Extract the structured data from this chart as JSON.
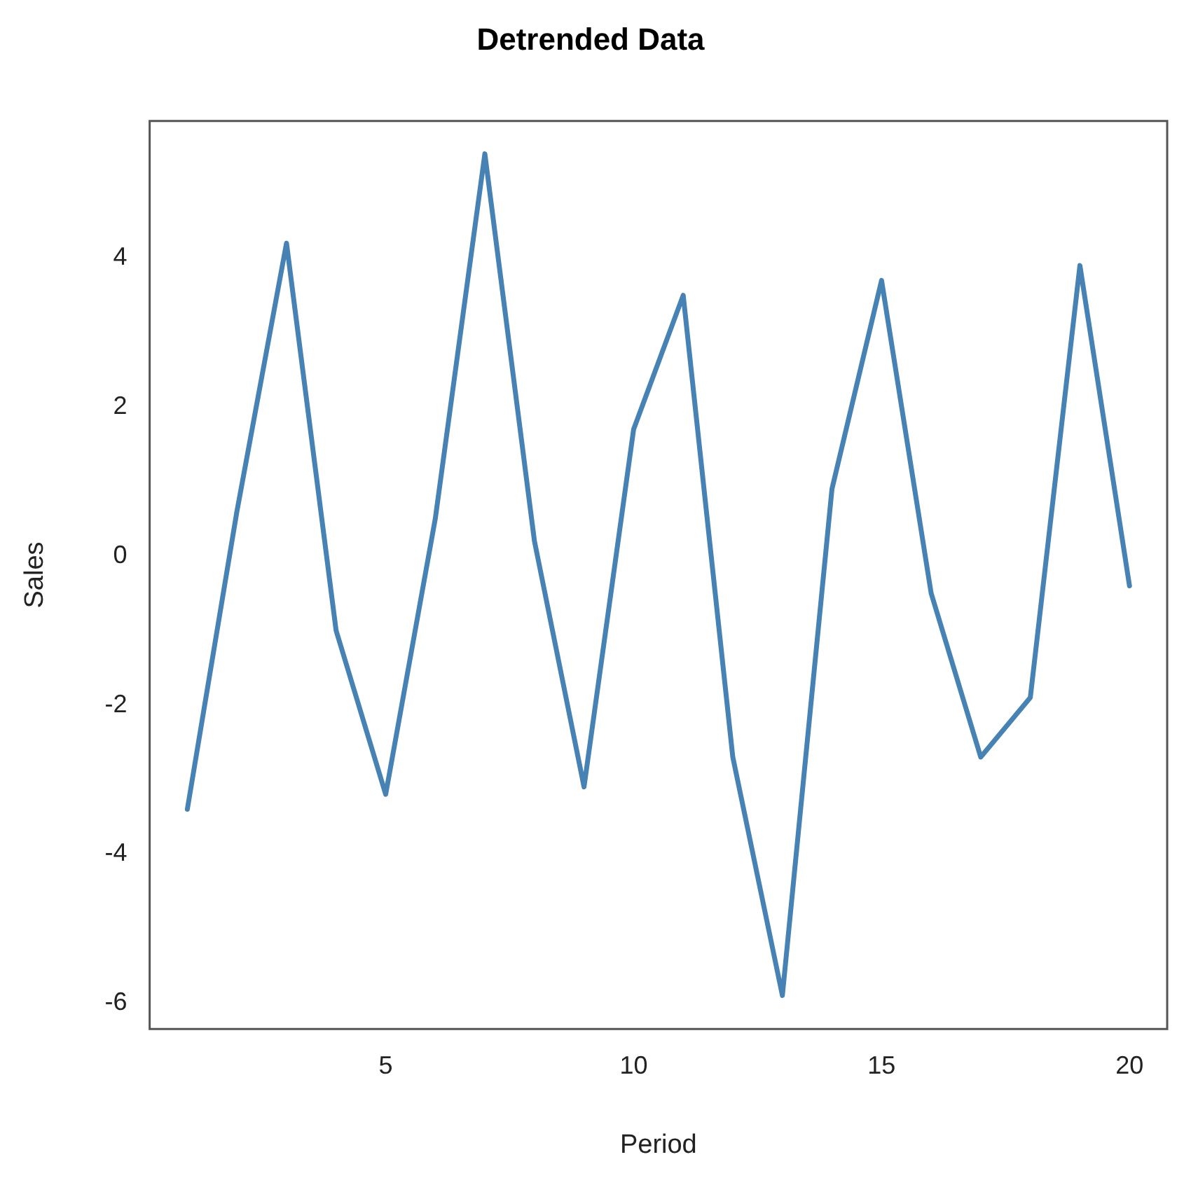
{
  "chart_data": {
    "type": "line",
    "title": "Detrended Data",
    "xlabel": "Period",
    "ylabel": "Sales",
    "x": [
      1,
      2,
      3,
      4,
      5,
      6,
      7,
      8,
      9,
      10,
      11,
      12,
      13,
      14,
      15,
      16,
      17,
      18,
      19,
      20
    ],
    "series": [
      {
        "color": "#4682b4",
        "values": [
          -3.4,
          0.6,
          4.2,
          -1.0,
          -3.2,
          0.5,
          5.4,
          0.2,
          -3.1,
          1.7,
          3.5,
          -2.7,
          -5.9,
          0.9,
          3.7,
          -0.5,
          -2.7,
          -1.9,
          3.9,
          -0.4
        ]
      }
    ],
    "xlim": [
      0.24,
      20.76
    ],
    "xticks": [
      5,
      10,
      15,
      20
    ],
    "ylim": [
      -6.35,
      5.84
    ],
    "yticks": [
      -6,
      -4,
      -2,
      0,
      2,
      4
    ],
    "grid": false,
    "legend": false,
    "marker": "none",
    "line_style": "solid"
  }
}
